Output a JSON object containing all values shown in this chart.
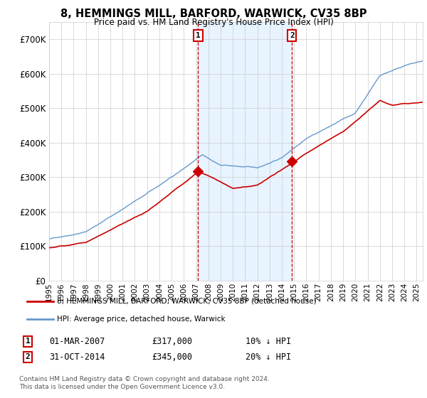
{
  "title": "8, HEMMINGS MILL, BARFORD, WARWICK, CV35 8BP",
  "subtitle": "Price paid vs. HM Land Registry's House Price Index (HPI)",
  "ylabel_ticks": [
    "£0",
    "£100K",
    "£200K",
    "£300K",
    "£400K",
    "£500K",
    "£600K",
    "£700K"
  ],
  "ylim": [
    0,
    750000
  ],
  "xlim_start": 1995.0,
  "xlim_end": 2025.5,
  "hpi_color": "#6699cc",
  "hpi_fill_color": "#ddeeff",
  "price_color": "#cc0000",
  "marker1_x": 2007.17,
  "marker1_y": 317000,
  "marker2_x": 2014.83,
  "marker2_y": 345000,
  "marker1_date": "01-MAR-2007",
  "marker1_price": "£317,000",
  "marker1_hpi": "10% ↓ HPI",
  "marker2_date": "31-OCT-2014",
  "marker2_price": "£345,000",
  "marker2_hpi": "20% ↓ HPI",
  "legend_line1": "8, HEMMINGS MILL, BARFORD, WARWICK, CV35 8BP (detached house)",
  "legend_line2": "HPI: Average price, detached house, Warwick",
  "footer": "Contains HM Land Registry data © Crown copyright and database right 2024.\nThis data is licensed under the Open Government Licence v3.0.",
  "background_color": "#ffffff",
  "grid_color": "#cccccc"
}
